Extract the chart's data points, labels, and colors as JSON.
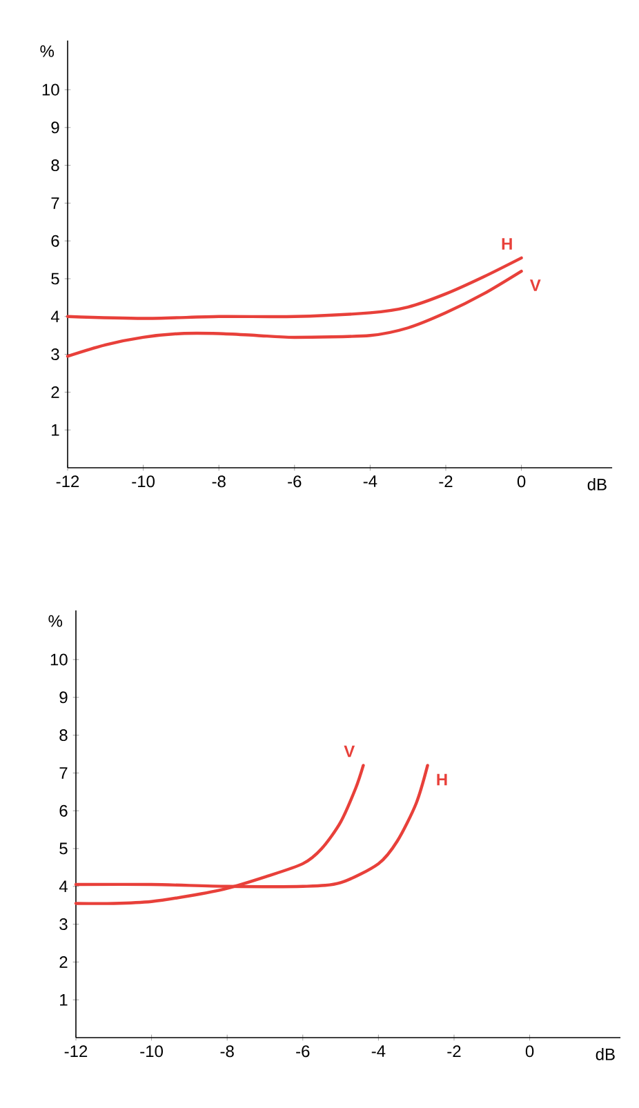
{
  "chart_data": [
    {
      "type": "line",
      "xlabel": "dB",
      "ylabel": "%",
      "xlim": [
        -12,
        2.4
      ],
      "ylim": [
        0,
        11.3
      ],
      "xticks": [
        -12,
        -10,
        -8,
        -6,
        -4,
        -2,
        0
      ],
      "yticks": [
        1,
        2,
        3,
        4,
        5,
        6,
        7,
        8,
        9,
        10
      ],
      "grid": false,
      "series": [
        {
          "name": "H",
          "color": "#e8403a",
          "x": [
            -12,
            -10,
            -8,
            -6,
            -4,
            -3,
            -2,
            -1,
            0
          ],
          "values": [
            4.0,
            3.95,
            4.0,
            4.0,
            4.1,
            4.25,
            4.6,
            5.05,
            5.55
          ]
        },
        {
          "name": "V",
          "color": "#e8403a",
          "x": [
            -12,
            -11,
            -10,
            -9,
            -8,
            -7,
            -6,
            -4,
            -3,
            -2,
            -1,
            0
          ],
          "values": [
            2.95,
            3.25,
            3.45,
            3.55,
            3.55,
            3.5,
            3.45,
            3.5,
            3.7,
            4.1,
            4.6,
            5.2
          ]
        }
      ]
    },
    {
      "type": "line",
      "xlabel": "dB",
      "ylabel": "%",
      "xlim": [
        -12,
        2.4
      ],
      "ylim": [
        0,
        11.3
      ],
      "xticks": [
        -12,
        -10,
        -8,
        -6,
        -4,
        -2,
        0
      ],
      "yticks": [
        1,
        2,
        3,
        4,
        5,
        6,
        7,
        8,
        9,
        10
      ],
      "grid": false,
      "series": [
        {
          "name": "V",
          "color": "#e8403a",
          "x": [
            -12,
            -11,
            -10,
            -9,
            -8,
            -7,
            -6,
            -5.5,
            -5,
            -4.6,
            -4.4
          ],
          "values": [
            3.55,
            3.55,
            3.6,
            3.75,
            3.95,
            4.25,
            4.6,
            5.0,
            5.7,
            6.6,
            7.2
          ]
        },
        {
          "name": "H",
          "color": "#e8403a",
          "x": [
            -12,
            -10,
            -8,
            -6,
            -5,
            -4,
            -3.5,
            -3,
            -2.7
          ],
          "values": [
            4.05,
            4.05,
            4.0,
            4.0,
            4.1,
            4.6,
            5.2,
            6.2,
            7.2
          ]
        }
      ]
    }
  ]
}
